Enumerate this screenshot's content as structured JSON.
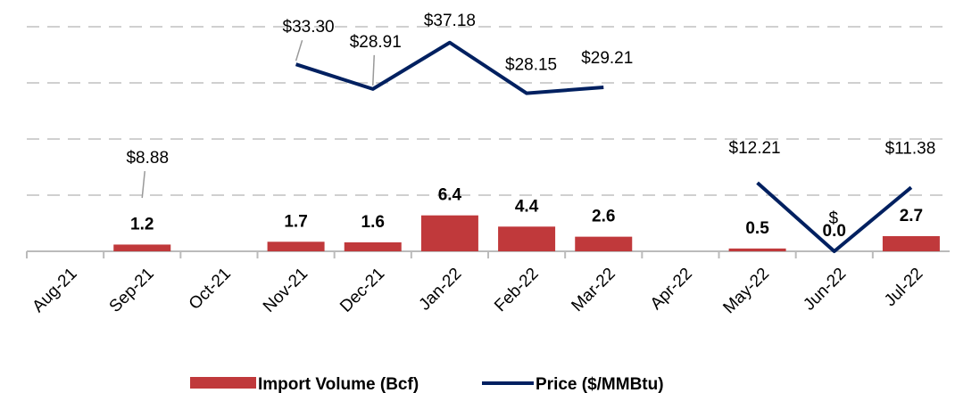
{
  "chart_data": {
    "type": "bar+line",
    "categories": [
      "Aug-21",
      "Sep-21",
      "Oct-21",
      "Nov-21",
      "Dec-21",
      "Jan-22",
      "Feb-22",
      "Mar-22",
      "Apr-22",
      "May-22",
      "Jun-22",
      "Jul-22"
    ],
    "series": [
      {
        "name": "Import Volume (Bcf)",
        "type": "bar",
        "color": "#c0393b",
        "values": [
          null,
          1.2,
          null,
          1.7,
          1.6,
          6.4,
          4.4,
          2.6,
          null,
          0.5,
          0.0,
          2.7
        ],
        "value_labels": [
          null,
          "1.2",
          null,
          "1.7",
          "1.6",
          "6.4",
          "4.4",
          "2.6",
          null,
          "0.5",
          "0.0",
          "2.7"
        ]
      },
      {
        "name": "Price ($/MMBtu)",
        "type": "line",
        "color": "#002060",
        "values": [
          null,
          8.88,
          null,
          33.3,
          28.91,
          37.18,
          28.15,
          29.21,
          null,
          12.21,
          0,
          11.38
        ],
        "value_labels": [
          null,
          "$8.88",
          null,
          "$33.30",
          "$28.91",
          "$37.18",
          "$28.15",
          "$29.21",
          null,
          "$12.21",
          "$",
          "$11.38"
        ]
      }
    ],
    "ylim": [
      0,
      40
    ],
    "yticks": [
      0,
      10,
      20,
      30,
      40
    ],
    "grid": true,
    "legend": "bottom"
  }
}
